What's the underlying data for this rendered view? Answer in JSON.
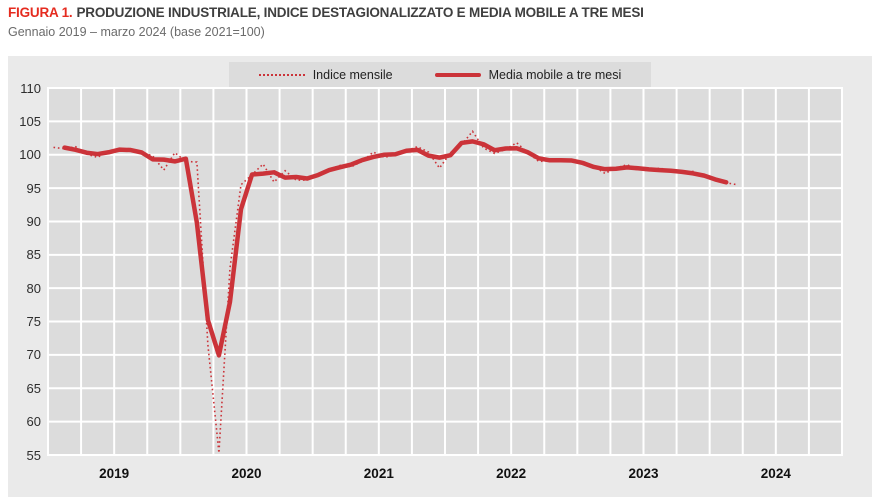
{
  "figure": {
    "label": "FIGURA 1.",
    "title": "PRODUZIONE INDUSTRIALE, INDICE DESTAGIONALIZZATO E MEDIA MOBILE A TRE MESI",
    "subtitle": "Gennaio 2019 – marzo 2024 (base 2021=100)"
  },
  "legend": {
    "position": "top-center",
    "monthly_label": "Indice mensile",
    "moving_avg_label": "Media mobile a tre mesi"
  },
  "colors": {
    "title_red": "#e52b1f",
    "series_red": "#cb3339",
    "panel_bg": "#eaeaea",
    "plot_bg": "#dcdcdc",
    "grid_white": "#ffffff",
    "title_text": "#3f3f3f",
    "subtitle_text": "#6b6b6b",
    "tick_text": "#2e2e2e"
  },
  "chart_data": {
    "type": "line",
    "title": "Produzione industriale, indice destagionalizzato e media mobile a tre mesi",
    "subtitle": "Gennaio 2019 – marzo 2024 (base 2021=100)",
    "xlabel": "",
    "ylabel": "",
    "ylim": [
      55,
      110
    ],
    "y_ticks": [
      110,
      105,
      100,
      95,
      90,
      85,
      80,
      75,
      70,
      65,
      60,
      55
    ],
    "x_tick_years": [
      "2019",
      "2020",
      "2021",
      "2022",
      "2023",
      "2024"
    ],
    "x_monthly_start": "2019-01",
    "x_monthly_end": "2024-03",
    "x_axis_span_months": 72,
    "grid": "white gridlines on gray plot area; horizontal every 5 index points, vertical quarterly",
    "legend_position": "top-center",
    "series": [
      {
        "name": "Indice mensile",
        "style": "dotted",
        "color": "#cb3339",
        "values": [
          101.1,
          100.9,
          101.2,
          100.1,
          99.6,
          100.6,
          100.9,
          100.8,
          100.4,
          99.8,
          97.7,
          100.3,
          99.0,
          98.9,
          71.5,
          55.3,
          83.0,
          95.5,
          97.0,
          98.6,
          95.9,
          97.6,
          96.2,
          96.2,
          96.9,
          97.8,
          98.4,
          98.2,
          99.0,
          100.4,
          99.6,
          100.0,
          100.6,
          101.2,
          100.4,
          98.0,
          100.3,
          101.5,
          103.5,
          101.0,
          100.2,
          100.8,
          101.8,
          100.3,
          99.0,
          99.1,
          99.4,
          99.0,
          99.0,
          98.3,
          97.2,
          98.0,
          98.5,
          97.8,
          97.6,
          98.0,
          97.5,
          97.3,
          97.5,
          96.8,
          96.3,
          95.8,
          95.5
        ]
      },
      {
        "name": "Media mobile a tre mesi",
        "style": "solid-thick",
        "color": "#cb3339",
        "derived": "centered 3-month moving average of Indice mensile (Feb 2019 – Feb 2024)"
      }
    ]
  }
}
